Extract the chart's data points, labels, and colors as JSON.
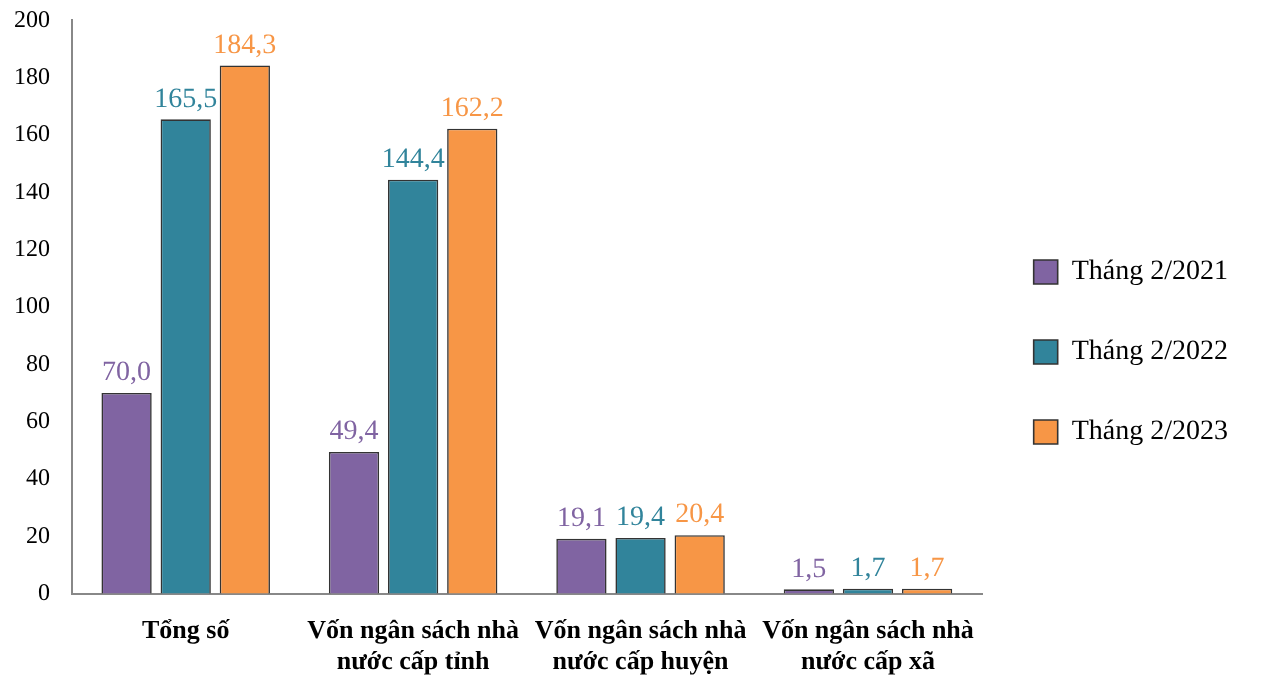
{
  "chart_data": {
    "type": "bar",
    "categories": [
      "Tổng số",
      "Vốn ngân sách nhà nước cấp tỉnh",
      "Vốn ngân sách nhà nước cấp huyện",
      "Vốn ngân sách nhà nước cấp xã"
    ],
    "series": [
      {
        "name": "Tháng 2/2021",
        "color": "#8064a2",
        "values": [
          70.0,
          49.4,
          19.1,
          1.5
        ],
        "value_labels": [
          "70,0",
          "49,4",
          "19,1",
          "1,5"
        ]
      },
      {
        "name": "Tháng 2/2022",
        "color": "#31849b",
        "values": [
          165.5,
          144.4,
          19.4,
          1.7
        ],
        "value_labels": [
          "165,5",
          "144,4",
          "19,4",
          "1,7"
        ]
      },
      {
        "name": "Tháng 2/2023",
        "color": "#f79646",
        "values": [
          184.3,
          162.2,
          20.4,
          1.7
        ],
        "value_labels": [
          "184,3",
          "162,2",
          "20,4",
          "1,7"
        ]
      }
    ],
    "ylim": [
      0,
      200
    ],
    "yticks": [
      0,
      20,
      40,
      60,
      80,
      100,
      120,
      140,
      160,
      180,
      200
    ],
    "grid": false,
    "legend": "right"
  }
}
